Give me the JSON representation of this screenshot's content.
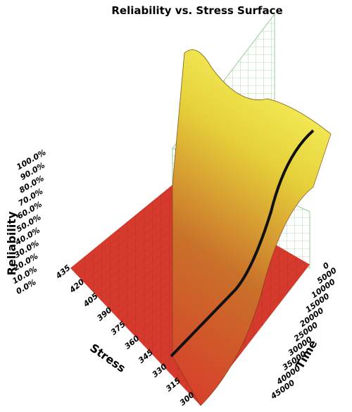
{
  "chart_data": {
    "type": "surface",
    "title": "Reliability vs. Stress Surface",
    "z_label": "Reliability",
    "x_label": "Stress",
    "y_label": "Time",
    "xticks": [
      435,
      420,
      405,
      390,
      375,
      360,
      345,
      330,
      315,
      300
    ],
    "yticks": [
      0,
      5000,
      10000,
      15000,
      20000,
      25000,
      30000,
      35000,
      40000,
      45000
    ],
    "zticks": [
      {
        "value": 0,
        "label": "0.0%"
      },
      {
        "value": 10,
        "label": "10.0%"
      },
      {
        "value": 20,
        "label": "20.0%"
      },
      {
        "value": 30,
        "label": "30.0%"
      },
      {
        "value": 40,
        "label": "40.0%"
      },
      {
        "value": 50,
        "label": "50.0%"
      },
      {
        "value": 60,
        "label": "60.0%"
      },
      {
        "value": 70,
        "label": "70.0%"
      },
      {
        "value": 80,
        "label": "80.0%"
      },
      {
        "value": 90,
        "label": "90.0%"
      },
      {
        "value": 100,
        "label": "100.0%"
      }
    ],
    "xlim": [
      435,
      300
    ],
    "ylim": [
      0,
      45000
    ],
    "zlim": [
      0,
      100
    ]
  }
}
